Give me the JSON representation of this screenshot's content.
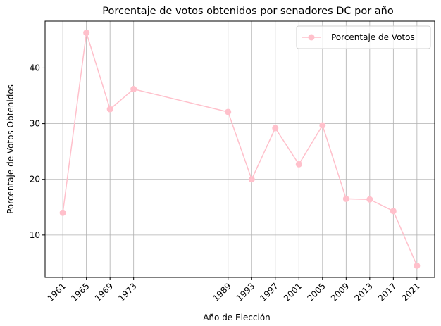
{
  "chart_data": {
    "type": "line",
    "title": "Porcentaje de votos obtenidos por senadores DC por año",
    "xlabel": "Año de Elección",
    "ylabel": "Porcentaje de Votos Obtenidos",
    "x": [
      1961,
      1965,
      1969,
      1973,
      1989,
      1993,
      1997,
      2001,
      2005,
      2009,
      2013,
      2017,
      2021
    ],
    "x_tick_labels": [
      "1961",
      "1965",
      "1969",
      "1973",
      "1989",
      "1993",
      "1997",
      "2001",
      "2005",
      "2009",
      "2013",
      "2017",
      "2021"
    ],
    "series": [
      {
        "name": "Porcentaje de Votos",
        "values": [
          14.0,
          46.3,
          32.6,
          36.2,
          32.1,
          20.0,
          29.2,
          22.7,
          29.7,
          16.5,
          16.4,
          14.3,
          4.5
        ],
        "color": "#ffc0cb",
        "marker": "circle"
      }
    ],
    "yticks": [
      10,
      20,
      30,
      40
    ],
    "ylim": [
      2.4,
      48.4
    ],
    "xlim": [
      1958,
      2024
    ],
    "grid": true,
    "legend_position": "top-right"
  }
}
